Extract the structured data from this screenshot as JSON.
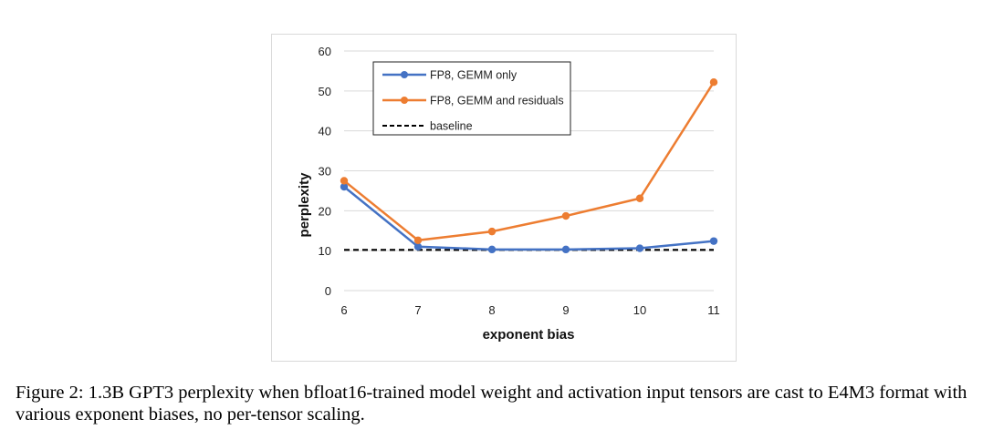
{
  "chart_data": {
    "type": "line",
    "x": [
      6,
      7,
      8,
      9,
      10,
      11
    ],
    "series": [
      {
        "name": "FP8, GEMM only",
        "color": "#4472c4",
        "values": [
          26,
          11,
          10.3,
          10.3,
          10.6,
          12.4
        ]
      },
      {
        "name": "FP8, GEMM and residuals",
        "color": "#ed7d31",
        "values": [
          27.5,
          12.6,
          14.8,
          18.7,
          23.1,
          52.2
        ]
      },
      {
        "name": "baseline",
        "color": "#000000",
        "style": "dashed",
        "values": [
          10.2,
          10.2,
          10.2,
          10.2,
          10.2,
          10.2
        ]
      }
    ],
    "xlabel": "exponent bias",
    "ylabel": "perplexity",
    "ylim": [
      0,
      60
    ],
    "yticks": [
      0,
      10,
      20,
      30,
      40,
      50,
      60
    ],
    "xticks": [
      6,
      7,
      8,
      9,
      10,
      11
    ],
    "grid": "horizontal",
    "legend_position": "top-left"
  },
  "caption": "Figure 2: 1.3B GPT3 perplexity when bfloat16-trained model weight and activation input tensors are cast to E4M3 format with various exponent biases, no per-tensor scaling."
}
